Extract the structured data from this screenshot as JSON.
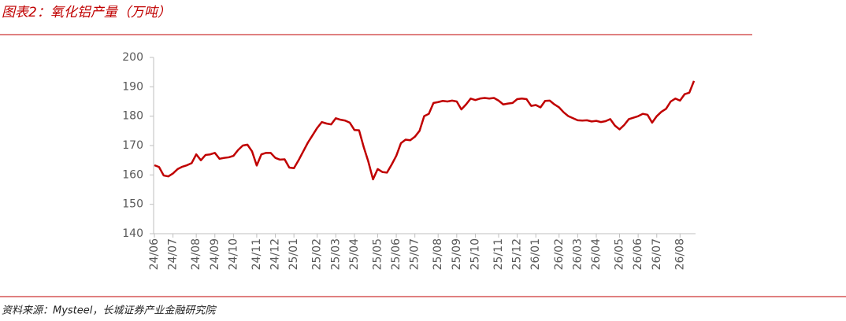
{
  "chart_data": {
    "type": "line",
    "title": "图表2：氧化铝产量（万吨）",
    "source": "资料来源：Mysteel，长城证券产业金融研究院",
    "categories": [
      "24/06",
      null,
      null,
      null,
      "24/07",
      null,
      null,
      null,
      null,
      "24/08",
      null,
      null,
      null,
      "24/09",
      null,
      null,
      null,
      "24/10",
      null,
      null,
      null,
      null,
      "24/11",
      null,
      null,
      null,
      "24/12",
      null,
      null,
      null,
      "25/01",
      null,
      null,
      null,
      null,
      "25/02",
      null,
      null,
      null,
      "25/03",
      null,
      null,
      null,
      "25/04",
      null,
      null,
      null,
      null,
      "25/05",
      null,
      null,
      null,
      "25/06",
      null,
      null,
      null,
      "25/07",
      null,
      null,
      null,
      null,
      "25/08",
      null,
      null,
      null,
      "25/09",
      null,
      null,
      null,
      "25/10",
      null,
      null,
      null,
      null,
      "25/11",
      null,
      null,
      null,
      "25/12",
      null,
      null,
      null,
      "26/01",
      null,
      null,
      null,
      null,
      "26/02",
      null,
      null,
      null,
      "26/03",
      null,
      null,
      null,
      "26/04",
      null,
      null,
      null,
      null,
      "26/05",
      null,
      null,
      null,
      "26/06",
      null,
      null,
      null,
      "26/07",
      null,
      null,
      null,
      null,
      "26/08",
      null,
      null,
      null
    ],
    "series": [
      {
        "name": "氧化铝产量",
        "color": "#c00000",
        "values": [
          163.3,
          162.7,
          159.8,
          159.5,
          160.5,
          162,
          162.8,
          163.3,
          164,
          167,
          165,
          166.8,
          167,
          167.5,
          165.5,
          165.8,
          166,
          166.5,
          168.5,
          170,
          170.3,
          168,
          163.2,
          167,
          167.5,
          167.5,
          165.8,
          165.2,
          165.3,
          162.5,
          162.3,
          165,
          168,
          171,
          173.5,
          176,
          178,
          177.5,
          177.2,
          179.3,
          178.8,
          178.5,
          177.8,
          175.3,
          175.2,
          169.5,
          164.5,
          158.5,
          162,
          161,
          160.8,
          163.5,
          166.5,
          170.8,
          172,
          171.8,
          173,
          175,
          180,
          180.8,
          184.5,
          184.8,
          185.2,
          185,
          185.3,
          185,
          182.3,
          184,
          186,
          185.5,
          186,
          186.2,
          186,
          186.2,
          185.3,
          184,
          184.3,
          184.5,
          185.8,
          186,
          185.8,
          183.5,
          183.8,
          183,
          185.2,
          185.3,
          184,
          183,
          181.3,
          180,
          179.3,
          178.6,
          178.5,
          178.6,
          178.2,
          178.4,
          178,
          178.3,
          179,
          176.8,
          175.5,
          177,
          179,
          179.5,
          180,
          180.8,
          180.5,
          177.8,
          180,
          181.5,
          182.5,
          185,
          186,
          185.3,
          187.5,
          188,
          192
        ]
      }
    ],
    "ylim": [
      140,
      200
    ],
    "yticks": [
      140,
      150,
      160,
      170,
      180,
      190,
      200
    ],
    "grid": false
  }
}
